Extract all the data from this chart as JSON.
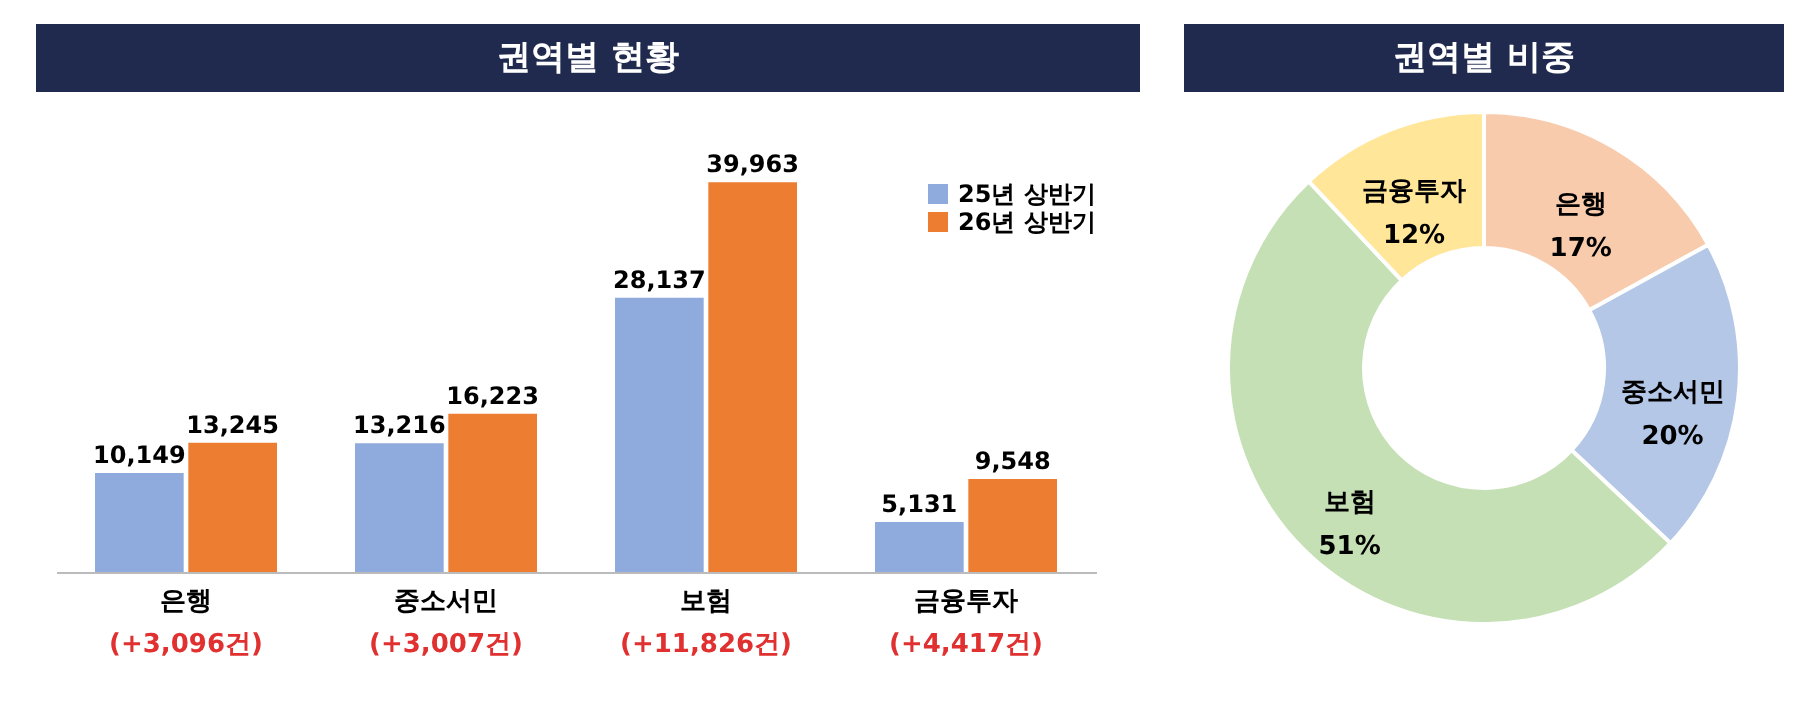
{
  "chart_data": [
    {
      "type": "bar",
      "title": "권역별 현황",
      "categories": [
        "은행",
        "중소서민",
        "보험",
        "금융투자"
      ],
      "series": [
        {
          "name": "25년 상반기",
          "color": "#8faadc",
          "values": [
            10149,
            13216,
            28137,
            5131
          ],
          "value_labels": [
            "10,149",
            "13,216",
            "28,137",
            "5,131"
          ]
        },
        {
          "name": "26년 상반기",
          "color": "#ed7d31",
          "values": [
            13245,
            16223,
            39963,
            9548
          ],
          "value_labels": [
            "13,245",
            "16,223",
            "39,963",
            "9,548"
          ]
        }
      ],
      "legend": "top right",
      "tick_labels": "x",
      "annotations": [
        "(+3,096건)",
        "(+3,007건)",
        "(+11,826건)",
        "(+4,417건)"
      ]
    },
    {
      "type": "donut",
      "title": "권역별 비중",
      "categories": [
        "은행",
        "중소서민",
        "보험",
        "금융투자"
      ],
      "values": [
        17,
        20,
        51,
        12
      ],
      "colors": [
        "#f8cbad",
        "#b4c7e7",
        "#c5e0b4",
        "#ffe699"
      ],
      "value_labels": [
        "17%",
        "20%",
        "51%",
        "12%"
      ],
      "legend": false
    }
  ]
}
